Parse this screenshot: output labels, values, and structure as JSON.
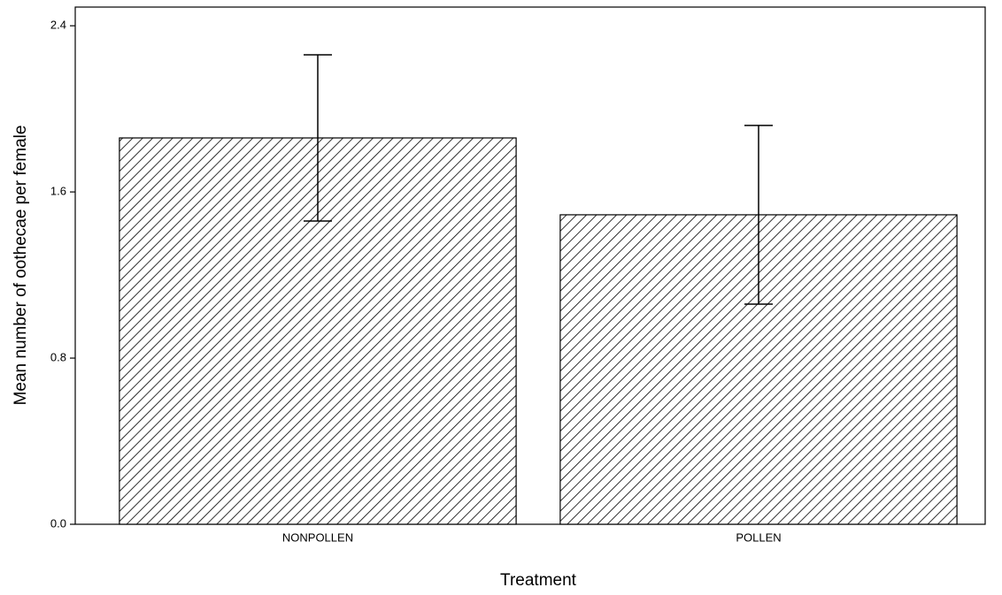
{
  "chart_data": {
    "type": "bar",
    "x_label": "Treatment",
    "y_label": "Mean number of oothecae per female",
    "categories": [
      "NONPOLLEN",
      "POLLEN"
    ],
    "values": [
      1.86,
      1.49
    ],
    "errors": [
      0.4,
      0.43
    ],
    "color": "#000000",
    "ylim": [
      0,
      2.49
    ],
    "yticks": [
      {
        "value": 0,
        "label": "0.0"
      },
      0.8,
      1.6,
      2.4
    ]
  }
}
